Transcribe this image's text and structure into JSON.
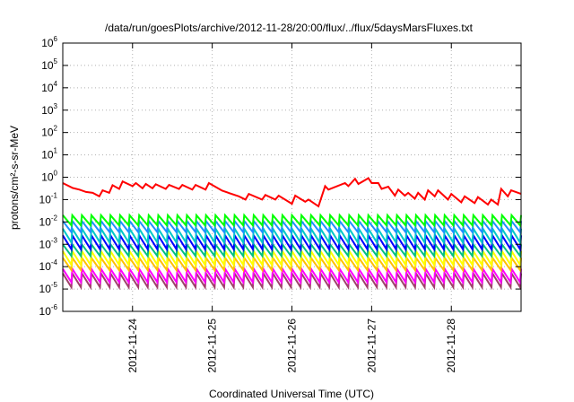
{
  "chart_data": {
    "type": "line",
    "title": "/data/run/goesPlots/archive/2012-11-28/20:00/flux/../flux/5daysMarsFluxes.txt",
    "xlabel": "Coordinated Universal Time (UTC)",
    "ylabel": "protons/cm²-s-sr-MeV",
    "y_scale": "log",
    "ylim": [
      1e-06,
      1000000.0
    ],
    "y_ticks": [
      {
        "base": "10",
        "exp": "-6",
        "value": 1e-06
      },
      {
        "base": "10",
        "exp": "-5",
        "value": 1e-05
      },
      {
        "base": "10",
        "exp": "-4",
        "value": 0.0001
      },
      {
        "base": "10",
        "exp": "-3",
        "value": 0.001
      },
      {
        "base": "10",
        "exp": "-2",
        "value": 0.01
      },
      {
        "base": "10",
        "exp": "-1",
        "value": 0.1
      },
      {
        "base": "10",
        "exp": "0",
        "value": 1
      },
      {
        "base": "10",
        "exp": "1",
        "value": 10
      },
      {
        "base": "10",
        "exp": "2",
        "value": 100
      },
      {
        "base": "10",
        "exp": "3",
        "value": 1000
      },
      {
        "base": "10",
        "exp": "4",
        "value": 10000
      },
      {
        "base": "10",
        "exp": "5",
        "value": 100000
      },
      {
        "base": "10",
        "exp": "6",
        "value": 1000000
      }
    ],
    "xlim": [
      "2012-11-23T03:00",
      "2012-11-28T21:00"
    ],
    "x_ticks": [
      "2012-11-24",
      "2012-11-25",
      "2012-11-26",
      "2012-11-27",
      "2012-11-28"
    ],
    "grid": true,
    "legend": "none",
    "series": [
      {
        "color": "#ff0000",
        "x": [
          "2012-11-23T03:00",
          "2012-11-23T06:00",
          "2012-11-23T08:00",
          "2012-11-23T10:00",
          "2012-11-23T12:00",
          "2012-11-23T14:00",
          "2012-11-23T15:00",
          "2012-11-23T17:00",
          "2012-11-23T18:00",
          "2012-11-23T20:00",
          "2012-11-23T21:00",
          "2012-11-24T00:00",
          "2012-11-24T01:00",
          "2012-11-24T03:00",
          "2012-11-24T04:00",
          "2012-11-24T06:00",
          "2012-11-24T07:00",
          "2012-11-24T10:00",
          "2012-11-24T11:00",
          "2012-11-24T14:00",
          "2012-11-24T15:00",
          "2012-11-24T18:00",
          "2012-11-24T19:00",
          "2012-11-24T22:00",
          "2012-11-24T23:00",
          "2012-11-25T03:00",
          "2012-11-25T08:00",
          "2012-11-25T10:00",
          "2012-11-25T11:00",
          "2012-11-25T15:00",
          "2012-11-25T16:00",
          "2012-11-25T19:00",
          "2012-11-25T20:00",
          "2012-11-26T00:00",
          "2012-11-26T01:00",
          "2012-11-26T04:00",
          "2012-11-26T05:00",
          "2012-11-26T08:00",
          "2012-11-26T10:00",
          "2012-11-26T11:00",
          "2012-11-26T16:00",
          "2012-11-26T17:00",
          "2012-11-26T19:00",
          "2012-11-26T20:00",
          "2012-11-26T23:00",
          "2012-11-27T00:00",
          "2012-11-27T02:00",
          "2012-11-27T03:00",
          "2012-11-27T05:00",
          "2012-11-27T07:00",
          "2012-11-27T08:00",
          "2012-11-27T10:00",
          "2012-11-27T11:00",
          "2012-11-27T13:00",
          "2012-11-27T14:00",
          "2012-11-27T16:00",
          "2012-11-27T17:00",
          "2012-11-27T19:00",
          "2012-11-27T20:00",
          "2012-11-27T23:00",
          "2012-11-28T00:00",
          "2012-11-28T03:00",
          "2012-11-28T04:00",
          "2012-11-28T07:00",
          "2012-11-28T08:00",
          "2012-11-28T11:00",
          "2012-11-28T12:00",
          "2012-11-28T14:00",
          "2012-11-28T15:00",
          "2012-11-28T17:00",
          "2012-11-28T18:00",
          "2012-11-28T21:00"
        ],
        "values": [
          0.55,
          0.33,
          0.28,
          0.22,
          0.2,
          0.14,
          0.26,
          0.2,
          0.44,
          0.3,
          0.65,
          0.4,
          0.55,
          0.32,
          0.5,
          0.32,
          0.48,
          0.3,
          0.45,
          0.3,
          0.45,
          0.28,
          0.45,
          0.28,
          0.55,
          0.25,
          0.14,
          0.1,
          0.18,
          0.1,
          0.16,
          0.1,
          0.15,
          0.065,
          0.15,
          0.08,
          0.1,
          0.05,
          0.4,
          0.28,
          0.55,
          0.4,
          0.85,
          0.5,
          0.9,
          0.55,
          0.55,
          0.3,
          0.38,
          0.15,
          0.28,
          0.15,
          0.2,
          0.11,
          0.2,
          0.1,
          0.26,
          0.14,
          0.26,
          0.1,
          0.18,
          0.075,
          0.14,
          0.07,
          0.13,
          0.06,
          0.1,
          0.06,
          0.3,
          0.14,
          0.26,
          0.18
        ]
      },
      {
        "color": "#00ff00",
        "sawtooth": {
          "peak": 0.02,
          "trough": 0.007,
          "teeth": 48
        }
      },
      {
        "color": "#1e90ff",
        "sawtooth": {
          "peak": 0.011,
          "trough": 0.0035,
          "teeth": 48
        }
      },
      {
        "color": "#00c8c8",
        "sawtooth": {
          "peak": 0.005,
          "trough": 0.0012,
          "teeth": 48
        }
      },
      {
        "color": "#0000ff",
        "sawtooth": {
          "peak": 0.0025,
          "trough": 0.0006,
          "teeth": 48
        }
      },
      {
        "color": "#00c080",
        "sawtooth": {
          "peak": 0.001,
          "trough": 0.0003,
          "teeth": 48
        }
      },
      {
        "color": "#ffff00",
        "sawtooth": {
          "peak": 0.0005,
          "trough": 0.00012,
          "teeth": 48
        }
      },
      {
        "color": "#ffc000",
        "sawtooth": {
          "peak": 0.00025,
          "trough": 7e-05,
          "teeth": 48
        }
      },
      {
        "color": "#ff00ff",
        "sawtooth": {
          "peak": 8e-05,
          "trough": 2e-05,
          "teeth": 48
        }
      },
      {
        "color": "#a0406a",
        "sawtooth": {
          "peak": 5e-05,
          "trough": 1.2e-05,
          "teeth": 48
        }
      }
    ]
  }
}
